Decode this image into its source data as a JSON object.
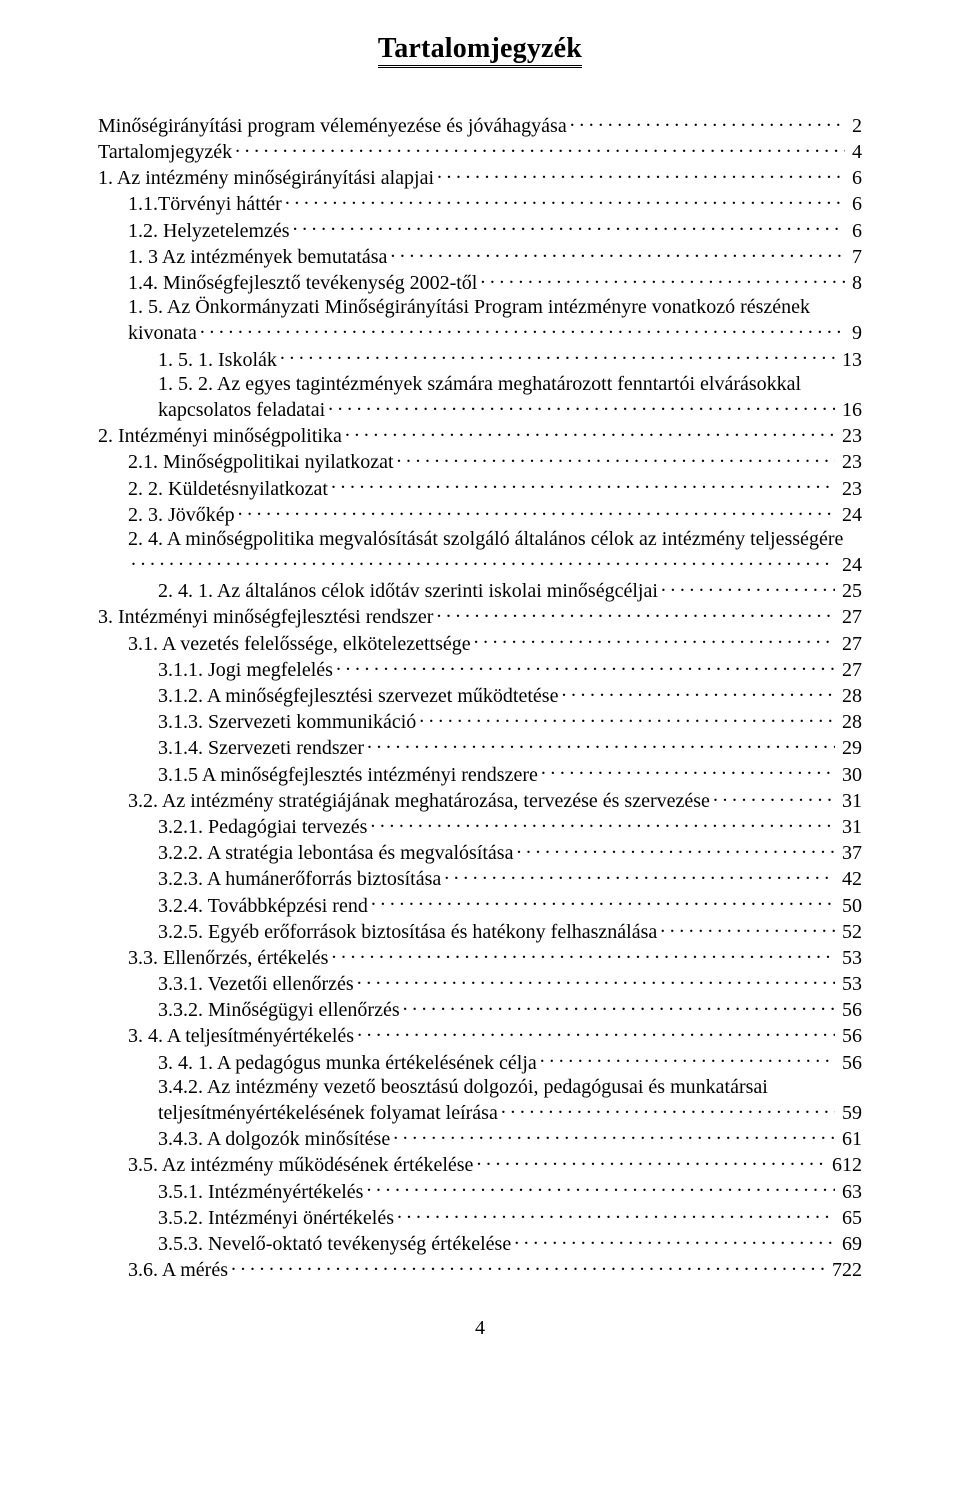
{
  "title": "Tartalomjegyzék",
  "page_number": "4",
  "toc": [
    {
      "indent": 0,
      "label": "Minőségirányítási program véleményezése és jóváhagyása",
      "page": "2"
    },
    {
      "indent": 0,
      "label": "Tartalomjegyzék",
      "page": "4"
    },
    {
      "indent": 0,
      "label": "1. Az intézmény minőségirányítási alapjai",
      "page": "6"
    },
    {
      "indent": 1,
      "label": "1.1.Törvényi háttér",
      "page": "6"
    },
    {
      "indent": 1,
      "label": "1.2. Helyzetelemzés",
      "page": "6"
    },
    {
      "indent": 1,
      "label": "1. 3 Az intézmények bemutatása",
      "page": "7"
    },
    {
      "indent": 1,
      "label": "1.4. Minőségfejlesztő tevékenység 2002-től",
      "page": "8"
    },
    {
      "indent": 1,
      "label": "1. 5. Az Önkormányzati Minőségirányítási Program intézményre vonatkozó részének kivonata",
      "page": "9",
      "wrap": true
    },
    {
      "indent": 2,
      "label": "1. 5. 1. Iskolák",
      "page": "13"
    },
    {
      "indent": 2,
      "label": "1. 5. 2. Az egyes tagintézmények számára meghatározott fenntartói elvárásokkal kapcsolatos feladatai",
      "page": "16",
      "wrap": true
    },
    {
      "indent": 0,
      "label": "2. Intézményi minőségpolitika",
      "page": "23"
    },
    {
      "indent": 1,
      "label": "2.1. Minőségpolitikai nyilatkozat",
      "page": "23"
    },
    {
      "indent": 1,
      "label": "2. 2. Küldetésnyilatkozat",
      "page": "23"
    },
    {
      "indent": 1,
      "label": "2. 3. Jövőkép",
      "page": "24"
    },
    {
      "indent": 1,
      "label": "2. 4. A minőségpolitika megvalósítását szolgáló általános célok az intézmény teljességére",
      "page": "24",
      "wrap": true,
      "page_on_new_line": true
    },
    {
      "indent": 2,
      "label": "2. 4. 1. Az általános célok időtáv szerinti iskolai minőségcéljai",
      "page": "25"
    },
    {
      "indent": 0,
      "label": "3. Intézményi minőségfejlesztési rendszer",
      "page": "27"
    },
    {
      "indent": 1,
      "label": "3.1. A vezetés felelőssége, elkötelezettsége",
      "page": "27"
    },
    {
      "indent": 2,
      "label": "3.1.1. Jogi megfelelés",
      "page": "27"
    },
    {
      "indent": 2,
      "label": "3.1.2. A minőségfejlesztési szervezet működtetése",
      "page": "28"
    },
    {
      "indent": 2,
      "label": "3.1.3. Szervezeti kommunikáció",
      "page": "28"
    },
    {
      "indent": 2,
      "label": "3.1.4. Szervezeti rendszer",
      "page": "29"
    },
    {
      "indent": 2,
      "label": "3.1.5 A minőségfejlesztés intézményi rendszere",
      "page": "30"
    },
    {
      "indent": 1,
      "label": "3.2. Az intézmény stratégiájának meghatározása, tervezése és szervezése",
      "page": "31"
    },
    {
      "indent": 2,
      "label": "3.2.1. Pedagógiai tervezés",
      "page": "31"
    },
    {
      "indent": 2,
      "label": "3.2.2. A stratégia lebontása és megvalósítása",
      "page": "37"
    },
    {
      "indent": 2,
      "label": "3.2.3. A humánerőforrás biztosítása",
      "page": "42"
    },
    {
      "indent": 2,
      "label": "3.2.4.     Továbbképzési rend",
      "page": "50"
    },
    {
      "indent": 2,
      "label": "3.2.5. Egyéb erőforrások biztosítása és hatékony felhasználása",
      "page": "52"
    },
    {
      "indent": 1,
      "label": "3.3. Ellenőrzés, értékelés",
      "page": "53"
    },
    {
      "indent": 2,
      "label": "3.3.1. Vezetői ellenőrzés",
      "page": "53"
    },
    {
      "indent": 2,
      "label": "3.3.2. Minőségügyi ellenőrzés",
      "page": "56"
    },
    {
      "indent": 1,
      "label": "3. 4. A teljesítményértékelés",
      "page": "56"
    },
    {
      "indent": 2,
      "label": "3. 4. 1. A pedagógus munka értékelésének célja",
      "page": "56"
    },
    {
      "indent": 2,
      "label": "3.4.2. Az intézmény vezető beosztású dolgozói, pedagógusai és munkatársai teljesítményértékelésének folyamat leírása",
      "page": "59",
      "wrap": true
    },
    {
      "indent": 2,
      "label": "3.4.3. A dolgozók minősítése",
      "page": "  61"
    },
    {
      "indent": 1,
      "label": "3.5. Az intézmény működésének értékelése",
      "page": "612"
    },
    {
      "indent": 2,
      "label": "3.5.1. Intézményértékelés",
      "page": "63"
    },
    {
      "indent": 2,
      "label": "3.5.2. Intézményi önértékelés",
      "page": "65"
    },
    {
      "indent": 2,
      "label": "3.5.3. Nevelő-oktató tevékenység értékelése",
      "page": "69"
    },
    {
      "indent": 1,
      "label": "3.6. A mérés",
      "page": "722"
    }
  ]
}
